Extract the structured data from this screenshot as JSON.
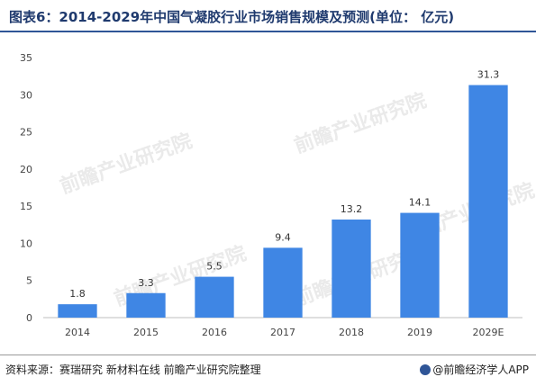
{
  "title": "图表6：2014-2029年中国气凝胶行业市场销售规模及预测(单位： 亿元)",
  "source": "资料来源：赛瑞研究 新材料在线 前瞻产业研究院整理",
  "brand": "@前瞻经济学人APP",
  "watermark": "前瞻产业研究院",
  "colors": {
    "bar": "#3f86e4",
    "title": "#1f3a6e"
  },
  "chart_data": {
    "type": "bar",
    "categories": [
      "2014",
      "2015",
      "2016",
      "2017",
      "2018",
      "2019",
      "2029E"
    ],
    "values": [
      1.8,
      3.3,
      5.5,
      9.4,
      13.2,
      14.1,
      31.3
    ],
    "value_labels": [
      "1.8",
      "3.3",
      "5.5",
      "9.4",
      "13.2",
      "14.1",
      "31.3"
    ],
    "title": "",
    "xlabel": "",
    "ylabel": "",
    "ylim": [
      0,
      35
    ],
    "yticks": [
      "0",
      "5",
      "10",
      "15",
      "20",
      "25",
      "30",
      "35"
    ],
    "grid": false,
    "legend": "none"
  }
}
